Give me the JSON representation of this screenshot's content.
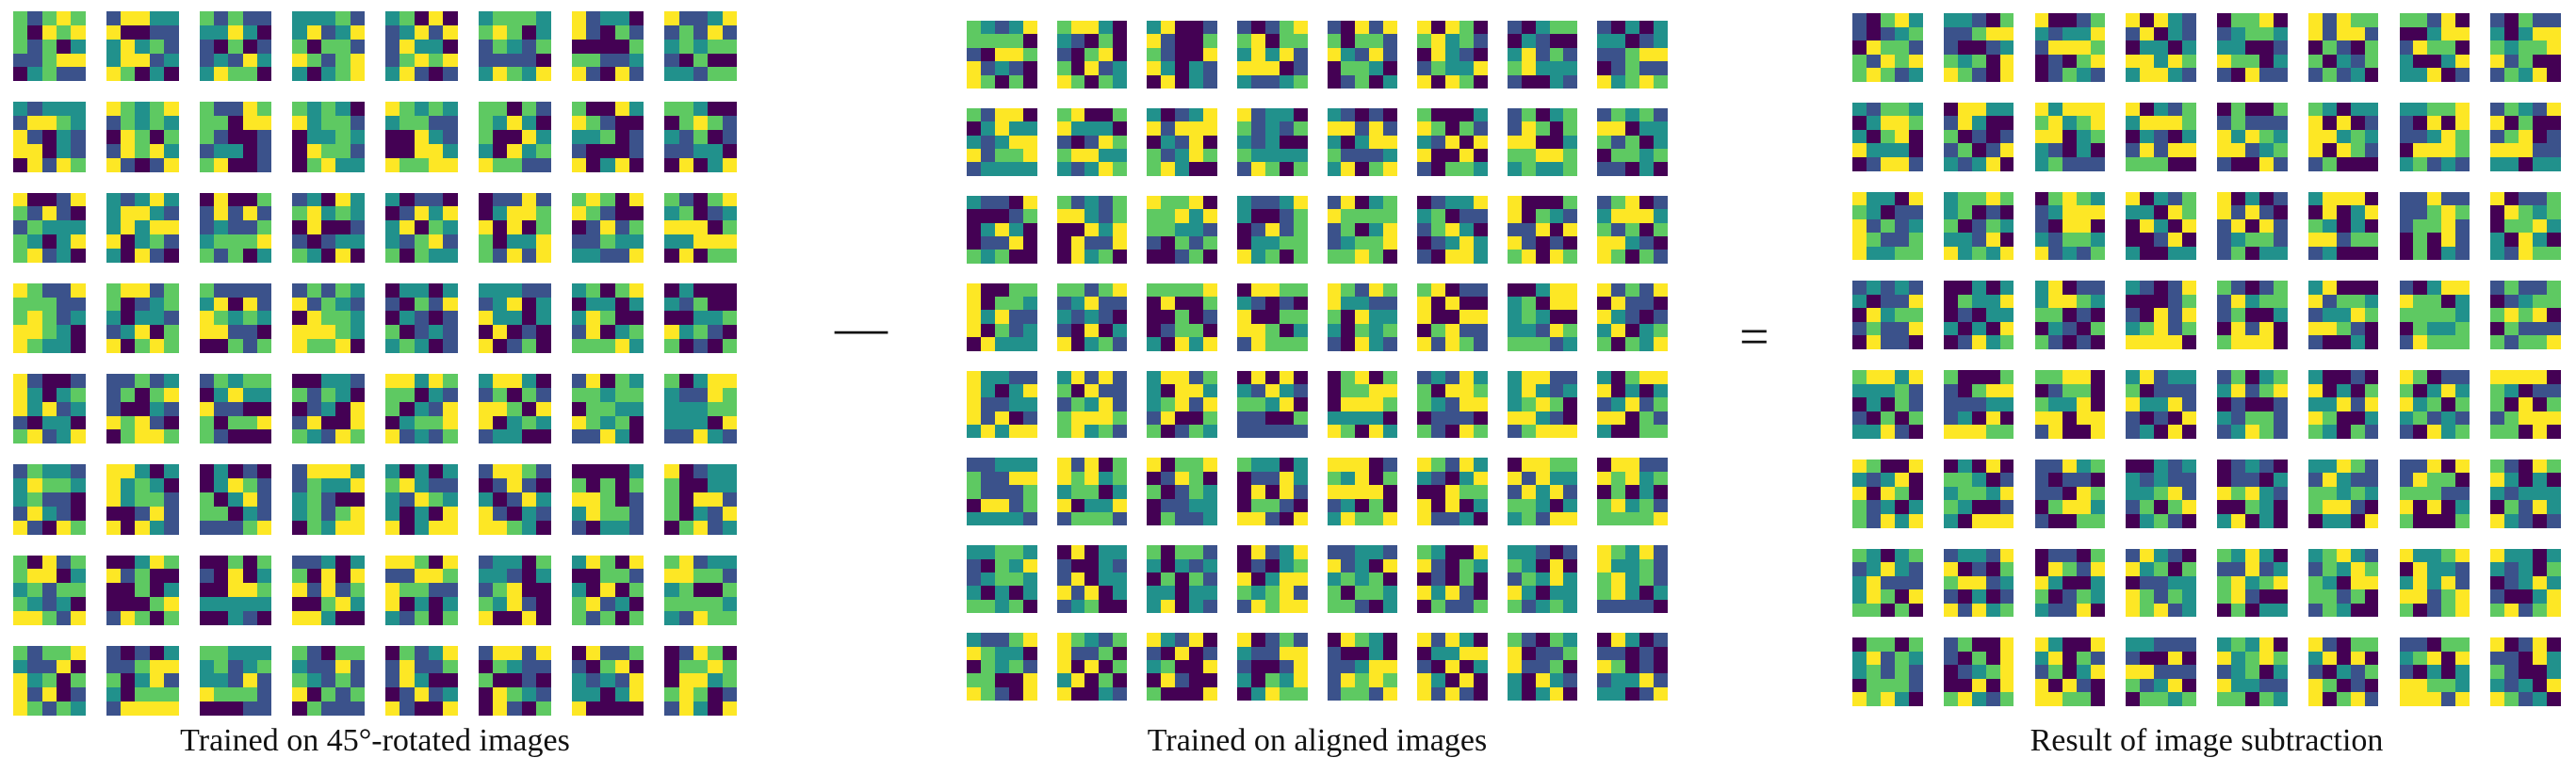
{
  "figure": {
    "colormap": [
      "#440154",
      "#3b528b",
      "#21918c",
      "#5ec962",
      "#fde725"
    ],
    "filters_per_row": 8,
    "rows": 8,
    "filter_resolution": 5,
    "panels": [
      {
        "caption": "Trained on 45°-rotated images"
      },
      {
        "caption": "Trained on aligned images"
      },
      {
        "caption": "Result of image subtraction"
      }
    ],
    "operators": {
      "minus": "—",
      "equals": "="
    }
  }
}
